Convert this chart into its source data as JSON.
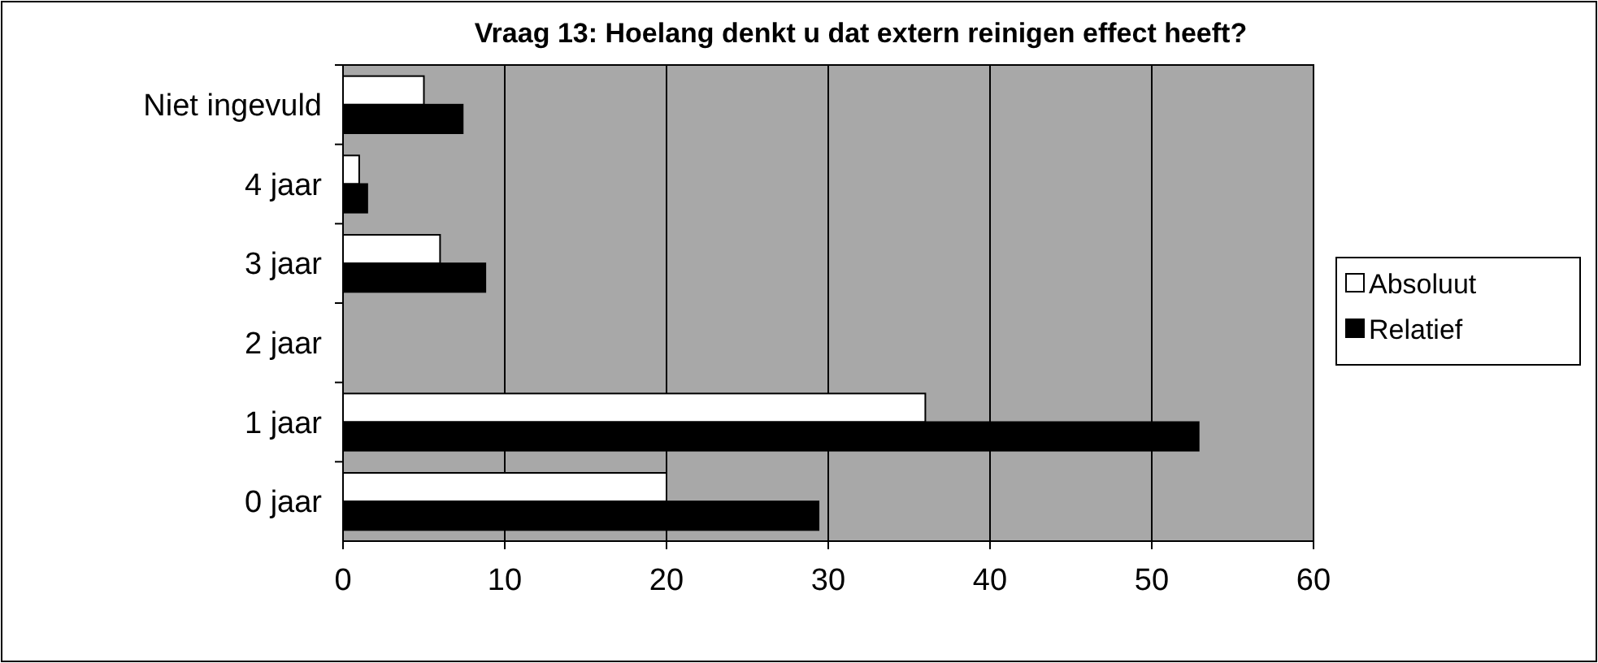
{
  "chart_data": {
    "type": "bar",
    "orientation": "horizontal",
    "title": "Vraag 13: Hoelang denkt u dat extern reinigen effect heeft?",
    "categories": [
      "Niet ingevuld",
      "4 jaar",
      "3 jaar",
      "2 jaar",
      "1 jaar",
      "0 jaar"
    ],
    "series": [
      {
        "name": "Absoluut",
        "color": "#ffffff",
        "values": [
          5,
          1,
          6,
          0,
          36,
          20
        ]
      },
      {
        "name": "Relatief",
        "color": "#000000",
        "values": [
          7.4,
          1.5,
          8.8,
          0,
          52.9,
          29.4
        ]
      }
    ],
    "xlim": [
      0,
      60
    ],
    "xticks": [
      0,
      10,
      20,
      30,
      40,
      50,
      60
    ],
    "grid": "x",
    "legend": "right"
  }
}
